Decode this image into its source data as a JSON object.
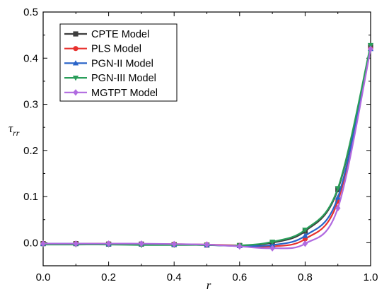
{
  "chart_data": {
    "type": "line",
    "xlabel": "r",
    "ylabel": "τ",
    "ylabel_sub": "rr",
    "xlim": [
      0.0,
      1.0
    ],
    "ylim": [
      -0.05,
      0.5
    ],
    "x_ticks": [
      "0.0",
      "0.2",
      "0.4",
      "0.6",
      "0.8",
      "1.0"
    ],
    "y_ticks": [
      "0.0",
      "0.1",
      "0.2",
      "0.3",
      "0.4",
      "0.5"
    ],
    "grid": false,
    "legend_position": "top-left",
    "x": [
      0.0,
      0.1,
      0.2,
      0.3,
      0.4,
      0.5,
      0.6,
      0.7,
      0.8,
      0.9,
      1.0
    ],
    "series": [
      {
        "name": "CPTE Model",
        "color": "#3d3d3d",
        "marker": "square",
        "values": [
          -0.002,
          -0.002,
          -0.003,
          -0.003,
          -0.004,
          -0.005,
          -0.006,
          0.0,
          0.025,
          0.115,
          0.425
        ]
      },
      {
        "name": "PLS Model",
        "color": "#e8312e",
        "marker": "circle",
        "values": [
          -0.002,
          -0.002,
          -0.002,
          -0.003,
          -0.003,
          -0.004,
          -0.006,
          -0.008,
          0.008,
          0.09,
          0.42
        ]
      },
      {
        "name": "PGN-II Model",
        "color": "#2a64c8",
        "marker": "triangle-up",
        "values": [
          -0.002,
          -0.002,
          -0.003,
          -0.003,
          -0.004,
          -0.005,
          -0.007,
          -0.005,
          0.015,
          0.098,
          0.42
        ]
      },
      {
        "name": "PGN-III Model",
        "color": "#2a9e5a",
        "marker": "triangle-down",
        "values": [
          -0.004,
          -0.004,
          -0.004,
          -0.005,
          -0.005,
          -0.005,
          -0.006,
          0.002,
          0.028,
          0.118,
          0.428
        ]
      },
      {
        "name": "MGTPT Model",
        "color": "#b06ae0",
        "marker": "diamond",
        "values": [
          -0.002,
          -0.002,
          -0.002,
          -0.002,
          -0.003,
          -0.004,
          -0.008,
          -0.012,
          -0.002,
          0.075,
          0.42
        ]
      }
    ]
  }
}
